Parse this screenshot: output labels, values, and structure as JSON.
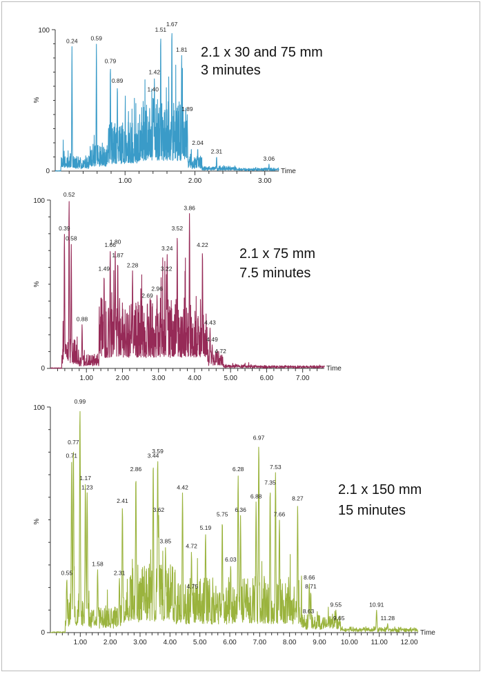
{
  "chart_data": [
    {
      "type": "line",
      "color": "#3a9bc8",
      "xlabel": "Time",
      "ylabel": "%",
      "xlim": [
        0,
        3.2
      ],
      "ylim": [
        0,
        100
      ],
      "x_ticks": [
        "1.00",
        "2.00",
        "3.00"
      ],
      "y_ticks": [
        "0",
        "100"
      ],
      "annotation": [
        "2.1 x 30 and 75 mm",
        "3 minutes"
      ],
      "peaks": [
        {
          "x": 0.24,
          "y": 88,
          "label": "0.24"
        },
        {
          "x": 0.59,
          "y": 90,
          "label": "0.59"
        },
        {
          "x": 0.79,
          "y": 74,
          "label": "0.79"
        },
        {
          "x": 0.89,
          "y": 60,
          "label": "0.89"
        },
        {
          "x": 1.4,
          "y": 54,
          "label": "1.40"
        },
        {
          "x": 1.42,
          "y": 66,
          "label": "1.42"
        },
        {
          "x": 1.51,
          "y": 96,
          "label": "1.51"
        },
        {
          "x": 1.67,
          "y": 100,
          "label": "1.67"
        },
        {
          "x": 1.81,
          "y": 82,
          "label": "1.81"
        },
        {
          "x": 1.89,
          "y": 40,
          "label": "1.89"
        },
        {
          "x": 2.04,
          "y": 16,
          "label": "2.04"
        },
        {
          "x": 2.31,
          "y": 10,
          "label": "2.31"
        },
        {
          "x": 3.06,
          "y": 5,
          "label": "3.06"
        }
      ],
      "profile": [
        {
          "s": 0.08,
          "e": 0.25,
          "a": 14
        },
        {
          "s": 0.25,
          "e": 0.5,
          "a": 10
        },
        {
          "s": 0.5,
          "e": 0.75,
          "a": 20
        },
        {
          "s": 0.75,
          "e": 1.2,
          "a": 34
        },
        {
          "s": 1.2,
          "e": 1.9,
          "a": 48
        },
        {
          "s": 1.9,
          "e": 2.1,
          "a": 10
        },
        {
          "s": 2.1,
          "e": 2.6,
          "a": 2.5
        },
        {
          "s": 2.6,
          "e": 3.2,
          "a": 1.2
        }
      ],
      "seed": 11
    },
    {
      "type": "line",
      "color": "#962a57",
      "xlabel": "Time",
      "ylabel": "%",
      "xlim": [
        0,
        7.6
      ],
      "ylim": [
        0,
        100
      ],
      "x_ticks": [
        "1.00",
        "2.00",
        "3.00",
        "4.00",
        "5.00",
        "6.00",
        "7.00"
      ],
      "y_ticks": [
        "0",
        "100"
      ],
      "annotation": [
        "2.1 x  75 mm",
        "7.5 minutes"
      ],
      "peaks": [
        {
          "x": 0.39,
          "y": 80,
          "label": "0.39"
        },
        {
          "x": 0.52,
          "y": 100,
          "label": "0.52"
        },
        {
          "x": 0.58,
          "y": 74,
          "label": "0.58"
        },
        {
          "x": 0.88,
          "y": 26,
          "label": "0.88"
        },
        {
          "x": 1.49,
          "y": 56,
          "label": "1.49"
        },
        {
          "x": 1.66,
          "y": 70,
          "label": "1.66"
        },
        {
          "x": 1.8,
          "y": 72,
          "label": "1.80"
        },
        {
          "x": 1.87,
          "y": 64,
          "label": "1.87"
        },
        {
          "x": 2.28,
          "y": 58,
          "label": "2.28"
        },
        {
          "x": 2.69,
          "y": 40,
          "label": "2.69"
        },
        {
          "x": 2.96,
          "y": 44,
          "label": "2.96"
        },
        {
          "x": 3.22,
          "y": 56,
          "label": "3.22"
        },
        {
          "x": 3.24,
          "y": 68,
          "label": "3.24"
        },
        {
          "x": 3.52,
          "y": 80,
          "label": "3.52"
        },
        {
          "x": 3.86,
          "y": 92,
          "label": "3.86"
        },
        {
          "x": 4.22,
          "y": 70,
          "label": "4.22"
        },
        {
          "x": 4.43,
          "y": 24,
          "label": "4.43"
        },
        {
          "x": 4.49,
          "y": 14,
          "label": "4.49"
        },
        {
          "x": 4.72,
          "y": 7,
          "label": "4.72"
        }
      ],
      "profile": [
        {
          "s": 0.32,
          "e": 0.75,
          "a": 18
        },
        {
          "s": 0.75,
          "e": 1.35,
          "a": 8
        },
        {
          "s": 1.35,
          "e": 4.35,
          "a": 42
        },
        {
          "s": 4.35,
          "e": 4.8,
          "a": 10
        },
        {
          "s": 4.8,
          "e": 5.6,
          "a": 1.6
        },
        {
          "s": 5.6,
          "e": 7.6,
          "a": 0.7
        }
      ],
      "seed": 23
    },
    {
      "type": "line",
      "color": "#9ab33d",
      "xlabel": "Time",
      "ylabel": "%",
      "xlim": [
        0,
        12.3
      ],
      "ylim": [
        0,
        100
      ],
      "x_ticks": [
        "1.00",
        "2.00",
        "3.00",
        "4.00",
        "5.00",
        "6.00",
        "7.00",
        "8.00",
        "9.00",
        "10.00",
        "11.00",
        "12.00"
      ],
      "y_ticks": [
        "0",
        "100"
      ],
      "annotation": [
        "2.1 x  150 mm",
        "15 minutes"
      ],
      "peaks": [
        {
          "x": 0.55,
          "y": 24,
          "label": "0.55"
        },
        {
          "x": 0.71,
          "y": 76,
          "label": "0.71"
        },
        {
          "x": 0.77,
          "y": 82,
          "label": "0.77"
        },
        {
          "x": 0.99,
          "y": 100,
          "label": "0.99"
        },
        {
          "x": 1.17,
          "y": 66,
          "label": "1.17"
        },
        {
          "x": 1.23,
          "y": 62,
          "label": "1.23"
        },
        {
          "x": 1.58,
          "y": 28,
          "label": "1.58"
        },
        {
          "x": 2.31,
          "y": 24,
          "label": "2.31"
        },
        {
          "x": 2.41,
          "y": 56,
          "label": "2.41"
        },
        {
          "x": 2.86,
          "y": 70,
          "label": "2.86"
        },
        {
          "x": 3.44,
          "y": 76,
          "label": "3.44"
        },
        {
          "x": 3.59,
          "y": 78,
          "label": "3.59"
        },
        {
          "x": 3.62,
          "y": 52,
          "label": "3.62"
        },
        {
          "x": 3.85,
          "y": 38,
          "label": "3.85"
        },
        {
          "x": 4.42,
          "y": 62,
          "label": "4.42"
        },
        {
          "x": 4.72,
          "y": 36,
          "label": "4.72"
        },
        {
          "x": 4.75,
          "y": 18,
          "label": "4.75"
        },
        {
          "x": 5.19,
          "y": 44,
          "label": "5.19"
        },
        {
          "x": 5.75,
          "y": 50,
          "label": "5.75"
        },
        {
          "x": 6.03,
          "y": 30,
          "label": "6.03"
        },
        {
          "x": 6.28,
          "y": 70,
          "label": "6.28"
        },
        {
          "x": 6.36,
          "y": 52,
          "label": "6.36"
        },
        {
          "x": 6.88,
          "y": 58,
          "label": "6.88"
        },
        {
          "x": 6.97,
          "y": 84,
          "label": "6.97"
        },
        {
          "x": 7.35,
          "y": 64,
          "label": "7.35"
        },
        {
          "x": 7.53,
          "y": 71,
          "label": "7.53"
        },
        {
          "x": 7.66,
          "y": 50,
          "label": "7.66"
        },
        {
          "x": 8.27,
          "y": 57,
          "label": "8.27"
        },
        {
          "x": 8.63,
          "y": 7,
          "label": "8.63"
        },
        {
          "x": 8.66,
          "y": 22,
          "label": "8.66"
        },
        {
          "x": 8.71,
          "y": 18,
          "label": "8.71"
        },
        {
          "x": 9.55,
          "y": 10,
          "label": "9.55"
        },
        {
          "x": 9.65,
          "y": 4,
          "label": "9.65"
        },
        {
          "x": 10.91,
          "y": 10,
          "label": "10.91"
        },
        {
          "x": 11.28,
          "y": 4,
          "label": "11.28"
        }
      ],
      "profile": [
        {
          "s": 0.5,
          "e": 1.3,
          "a": 18
        },
        {
          "s": 1.3,
          "e": 2.4,
          "a": 12
        },
        {
          "s": 2.4,
          "e": 4.2,
          "a": 30
        },
        {
          "s": 4.2,
          "e": 8.4,
          "a": 24
        },
        {
          "s": 8.4,
          "e": 9.7,
          "a": 8
        },
        {
          "s": 9.7,
          "e": 12.3,
          "a": 1.5
        }
      ],
      "seed": 37
    }
  ]
}
